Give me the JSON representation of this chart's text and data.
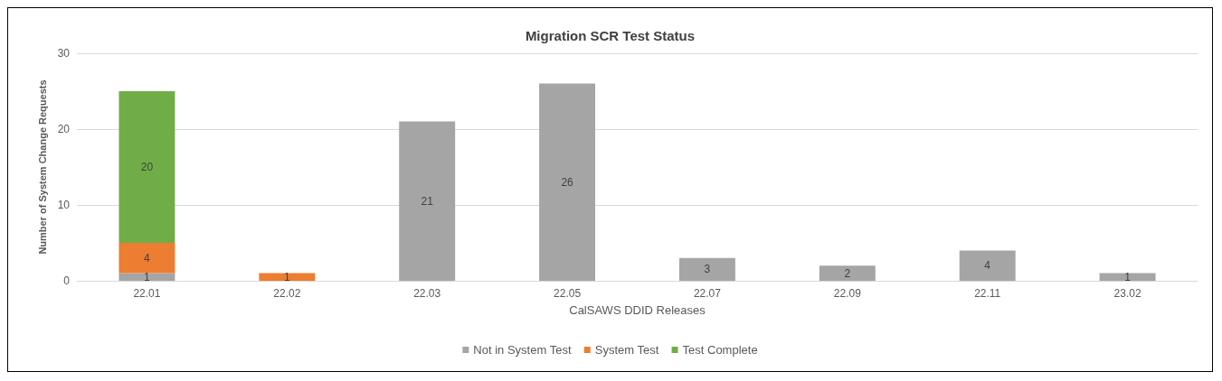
{
  "chart_data": {
    "type": "bar",
    "title": "Migration SCR Test Status",
    "xlabel": "CalSAWS DDID Releases",
    "ylabel": "Number of System Change Requests",
    "categories": [
      "22.01",
      "22.02",
      "22.03",
      "22.05",
      "22.07",
      "22.09",
      "22.11",
      "23.02"
    ],
    "stacked": true,
    "series": [
      {
        "name": "Not in System Test",
        "color": "#a5a5a5",
        "values": [
          1,
          0,
          21,
          26,
          3,
          2,
          4,
          1
        ],
        "value_labels": [
          "1",
          null,
          "21",
          "26",
          "3",
          "2",
          "4",
          "1"
        ]
      },
      {
        "name": "System Test",
        "color": "#ed7d31",
        "values": [
          4,
          1,
          0,
          0,
          0,
          0,
          0,
          0
        ],
        "value_labels": [
          "4",
          "1",
          null,
          null,
          null,
          null,
          null,
          null
        ]
      },
      {
        "name": "Test Complete",
        "color": "#70ad47",
        "values": [
          20,
          0,
          0,
          0,
          0,
          0,
          0,
          0
        ],
        "value_labels": [
          "20",
          null,
          null,
          null,
          null,
          null,
          null,
          null
        ]
      }
    ],
    "ylim": [
      0,
      30
    ],
    "yticks": [
      0,
      10,
      20,
      30
    ],
    "grid": "y",
    "legend": "bottom"
  }
}
